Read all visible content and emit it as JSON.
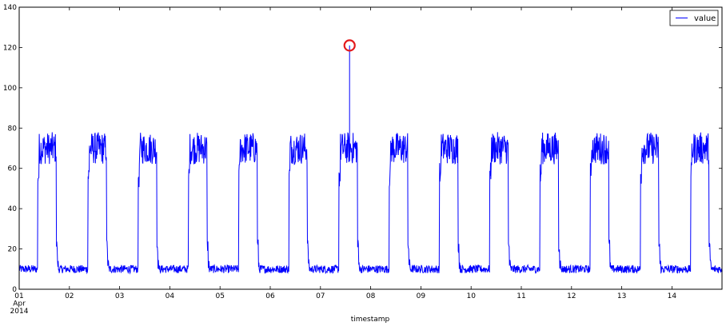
{
  "chart_data": {
    "type": "line",
    "title": "",
    "xlabel": "timestamp",
    "ylabel": "",
    "ylim": [
      0,
      140
    ],
    "yticks": [
      0,
      20,
      40,
      60,
      80,
      100,
      120,
      140
    ],
    "xticks": [
      "01\nApr\n2014",
      "02",
      "03",
      "04",
      "05",
      "06",
      "07",
      "08",
      "09",
      "10",
      "11",
      "12",
      "13",
      "14"
    ],
    "x_range_days": [
      0,
      14.0
    ],
    "grid": false,
    "legend": {
      "position": "upper right",
      "entries": [
        "value"
      ]
    },
    "series": [
      {
        "name": "value",
        "color": "#0000ff",
        "pattern": {
          "description": "Daily on/off cycle: low ~10 overnight, rises ~0.37 day to ~55-60, high plateau 63-77, drops ~0.74 day to ~22 then back to ~10",
          "low_level": [
            8,
            12
          ],
          "ramp_level": [
            50,
            63
          ],
          "high_level": [
            62,
            78
          ],
          "shoulder_level": [
            18,
            25
          ],
          "rise_frac": 0.37,
          "fall_frac": 0.74,
          "days": 14
        }
      }
    ],
    "annotations": [
      {
        "type": "anomaly-circle",
        "x_day": 6.58,
        "y": 121,
        "color": "#e31a1c",
        "label": "anomaly spike"
      }
    ]
  }
}
